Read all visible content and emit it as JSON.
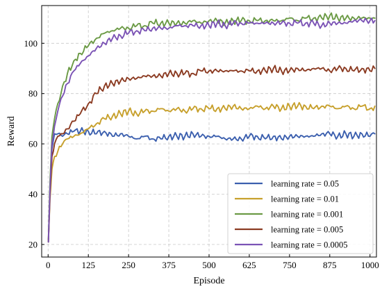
{
  "chart_data": {
    "type": "line",
    "title": "",
    "xlabel": "Episode",
    "ylabel": "Reward",
    "xlim": [
      -20,
      1020
    ],
    "ylim": [
      15,
      115
    ],
    "xticks": [
      0,
      125,
      250,
      375,
      500,
      625,
      750,
      875,
      1000
    ],
    "yticks": [
      20,
      40,
      60,
      80,
      100
    ],
    "grid": true,
    "legend_position": "bottom-right",
    "series": [
      {
        "name": "learning rate = 0.05",
        "color": "#3b5fae",
        "points": [
          [
            1,
            22
          ],
          [
            6,
            42
          ],
          [
            12,
            58
          ],
          [
            20,
            64
          ],
          [
            30,
            64
          ],
          [
            45,
            63
          ],
          [
            60,
            64
          ],
          [
            80,
            65
          ],
          [
            100,
            65
          ],
          [
            125,
            65
          ],
          [
            150,
            64
          ],
          [
            175,
            65
          ],
          [
            200,
            63
          ],
          [
            225,
            64
          ],
          [
            250,
            63
          ],
          [
            275,
            62
          ],
          [
            300,
            63
          ],
          [
            325,
            62
          ],
          [
            350,
            62
          ],
          [
            375,
            63
          ],
          [
            400,
            63
          ],
          [
            425,
            63
          ],
          [
            450,
            64
          ],
          [
            475,
            63
          ],
          [
            500,
            63
          ],
          [
            525,
            63
          ],
          [
            550,
            62
          ],
          [
            575,
            62
          ],
          [
            600,
            62
          ],
          [
            625,
            63
          ],
          [
            650,
            63
          ],
          [
            675,
            62
          ],
          [
            700,
            63
          ],
          [
            725,
            62
          ],
          [
            750,
            63
          ],
          [
            775,
            63
          ],
          [
            800,
            63
          ],
          [
            825,
            63
          ],
          [
            850,
            64
          ],
          [
            875,
            64
          ],
          [
            900,
            63
          ],
          [
            925,
            64
          ],
          [
            950,
            63
          ],
          [
            975,
            64
          ],
          [
            1000,
            63
          ],
          [
            1015,
            64
          ]
        ]
      },
      {
        "name": "learning rate = 0.01",
        "color": "#c7a02c",
        "points": [
          [
            1,
            22
          ],
          [
            6,
            38
          ],
          [
            12,
            50
          ],
          [
            20,
            55
          ],
          [
            30,
            57
          ],
          [
            45,
            60
          ],
          [
            60,
            62
          ],
          [
            80,
            63
          ],
          [
            100,
            64
          ],
          [
            125,
            66
          ],
          [
            150,
            68
          ],
          [
            175,
            70
          ],
          [
            200,
            71
          ],
          [
            225,
            72
          ],
          [
            250,
            73
          ],
          [
            275,
            72
          ],
          [
            300,
            73
          ],
          [
            325,
            73
          ],
          [
            350,
            74
          ],
          [
            375,
            73
          ],
          [
            400,
            74
          ],
          [
            425,
            73
          ],
          [
            450,
            74
          ],
          [
            475,
            74
          ],
          [
            500,
            74
          ],
          [
            525,
            74
          ],
          [
            550,
            74
          ],
          [
            575,
            75
          ],
          [
            600,
            74
          ],
          [
            625,
            74
          ],
          [
            650,
            75
          ],
          [
            675,
            74
          ],
          [
            700,
            75
          ],
          [
            725,
            74
          ],
          [
            750,
            75
          ],
          [
            775,
            75
          ],
          [
            800,
            75
          ],
          [
            825,
            74
          ],
          [
            850,
            75
          ],
          [
            875,
            75
          ],
          [
            900,
            74
          ],
          [
            925,
            75
          ],
          [
            950,
            74
          ],
          [
            975,
            75
          ],
          [
            1000,
            74
          ],
          [
            1015,
            75
          ]
        ]
      },
      {
        "name": "learning rate = 0.001",
        "color": "#6b9a45",
        "points": [
          [
            1,
            21
          ],
          [
            6,
            45
          ],
          [
            12,
            63
          ],
          [
            20,
            70
          ],
          [
            30,
            76
          ],
          [
            45,
            83
          ],
          [
            60,
            88
          ],
          [
            80,
            93
          ],
          [
            100,
            96
          ],
          [
            125,
            99
          ],
          [
            150,
            102
          ],
          [
            175,
            104
          ],
          [
            200,
            105
          ],
          [
            225,
            106
          ],
          [
            250,
            106
          ],
          [
            275,
            107
          ],
          [
            300,
            107
          ],
          [
            325,
            108
          ],
          [
            350,
            108
          ],
          [
            375,
            108
          ],
          [
            400,
            108
          ],
          [
            425,
            108
          ],
          [
            450,
            109
          ],
          [
            475,
            108
          ],
          [
            500,
            109
          ],
          [
            525,
            109
          ],
          [
            550,
            108
          ],
          [
            575,
            109
          ],
          [
            600,
            109
          ],
          [
            625,
            109
          ],
          [
            650,
            109
          ],
          [
            675,
            109
          ],
          [
            700,
            109
          ],
          [
            725,
            109
          ],
          [
            750,
            110
          ],
          [
            775,
            109
          ],
          [
            800,
            110
          ],
          [
            825,
            110
          ],
          [
            850,
            110
          ],
          [
            875,
            111
          ],
          [
            900,
            110
          ],
          [
            925,
            110
          ],
          [
            950,
            110
          ],
          [
            975,
            110
          ],
          [
            1000,
            110
          ],
          [
            1015,
            110
          ]
        ]
      },
      {
        "name": "learning rate = 0.005",
        "color": "#8b3b22",
        "points": [
          [
            1,
            21
          ],
          [
            6,
            40
          ],
          [
            12,
            55
          ],
          [
            20,
            60
          ],
          [
            30,
            63
          ],
          [
            45,
            64
          ],
          [
            60,
            66
          ],
          [
            80,
            69
          ],
          [
            100,
            72
          ],
          [
            125,
            76
          ],
          [
            150,
            80
          ],
          [
            175,
            83
          ],
          [
            200,
            84
          ],
          [
            225,
            85
          ],
          [
            250,
            86
          ],
          [
            275,
            86
          ],
          [
            300,
            87
          ],
          [
            325,
            87
          ],
          [
            350,
            87
          ],
          [
            375,
            88
          ],
          [
            400,
            88
          ],
          [
            425,
            88
          ],
          [
            450,
            88
          ],
          [
            475,
            89
          ],
          [
            500,
            89
          ],
          [
            525,
            89
          ],
          [
            550,
            89
          ],
          [
            575,
            89
          ],
          [
            600,
            89
          ],
          [
            625,
            89
          ],
          [
            650,
            89
          ],
          [
            675,
            89
          ],
          [
            700,
            90
          ],
          [
            725,
            89
          ],
          [
            750,
            89
          ],
          [
            775,
            90
          ],
          [
            800,
            89
          ],
          [
            825,
            90
          ],
          [
            850,
            90
          ],
          [
            875,
            89
          ],
          [
            900,
            90
          ],
          [
            925,
            90
          ],
          [
            950,
            89
          ],
          [
            975,
            90
          ],
          [
            1000,
            89
          ],
          [
            1015,
            90
          ]
        ]
      },
      {
        "name": "learning rate = 0.0005",
        "color": "#7b53b5",
        "points": [
          [
            1,
            21
          ],
          [
            6,
            42
          ],
          [
            12,
            60
          ],
          [
            20,
            67
          ],
          [
            30,
            73
          ],
          [
            45,
            79
          ],
          [
            60,
            84
          ],
          [
            80,
            89
          ],
          [
            100,
            92
          ],
          [
            125,
            95
          ],
          [
            150,
            98
          ],
          [
            175,
            100
          ],
          [
            200,
            102
          ],
          [
            225,
            103
          ],
          [
            250,
            104
          ],
          [
            275,
            105
          ],
          [
            300,
            105
          ],
          [
            325,
            106
          ],
          [
            350,
            106
          ],
          [
            375,
            106
          ],
          [
            400,
            107
          ],
          [
            425,
            107
          ],
          [
            450,
            107
          ],
          [
            475,
            107
          ],
          [
            500,
            107
          ],
          [
            525,
            108
          ],
          [
            550,
            107
          ],
          [
            575,
            108
          ],
          [
            600,
            108
          ],
          [
            625,
            108
          ],
          [
            650,
            108
          ],
          [
            675,
            108
          ],
          [
            700,
            108
          ],
          [
            725,
            108
          ],
          [
            750,
            108
          ],
          [
            775,
            108
          ],
          [
            800,
            108
          ],
          [
            825,
            108
          ],
          [
            850,
            107
          ],
          [
            875,
            108
          ],
          [
            900,
            108
          ],
          [
            925,
            108
          ],
          [
            950,
            109
          ],
          [
            975,
            109
          ],
          [
            1000,
            109
          ],
          [
            1015,
            109
          ]
        ]
      }
    ]
  }
}
